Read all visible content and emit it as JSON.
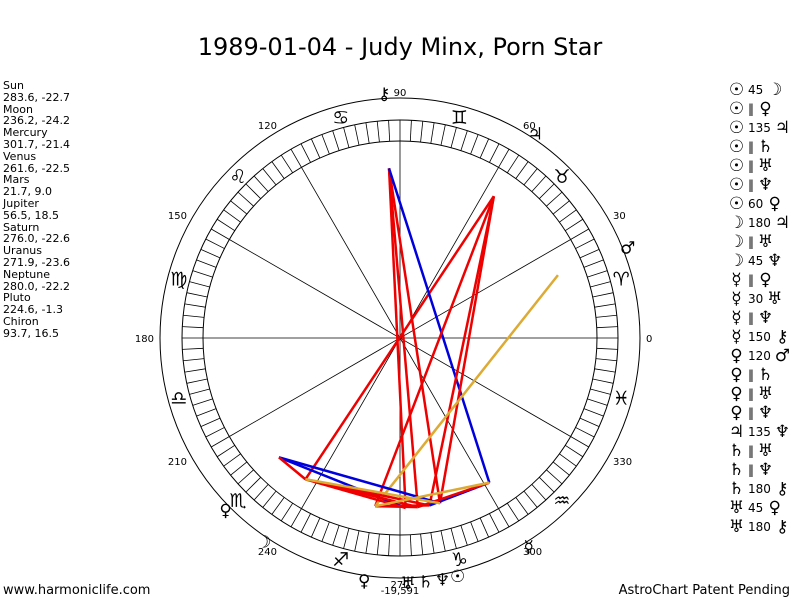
{
  "title": "1989-01-04 - Judy Minx, Porn Star",
  "planets": [
    {
      "name": "Sun",
      "coords": "283.6, -22.7",
      "lon": 283.6,
      "glyph": "☉"
    },
    {
      "name": "Moon",
      "coords": "236.2, -24.2",
      "lon": 236.2,
      "glyph": "☽"
    },
    {
      "name": "Mercury",
      "coords": "301.7, -21.4",
      "lon": 301.7,
      "glyph": "☿"
    },
    {
      "name": "Venus",
      "coords": "261.6, -22.5",
      "lon": 261.6,
      "glyph": "♀"
    },
    {
      "name": "Mars",
      "coords": "21.7, 9.0",
      "lon": 21.7,
      "glyph": "♂"
    },
    {
      "name": "Jupiter",
      "coords": "56.5, 18.5",
      "lon": 56.5,
      "glyph": "♃"
    },
    {
      "name": "Saturn",
      "coords": "276.0, -22.6",
      "lon": 276.0,
      "glyph": "♄"
    },
    {
      "name": "Uranus",
      "coords": "271.9, -23.6",
      "lon": 271.9,
      "glyph": "♅"
    },
    {
      "name": "Neptune",
      "coords": "280.0, -22.2",
      "lon": 280.0,
      "glyph": "♆"
    },
    {
      "name": "Pluto",
      "coords": "224.6, -1.3",
      "lon": 224.6,
      "glyph": "♀"
    },
    {
      "name": "Chiron",
      "coords": "93.7, 16.5",
      "lon": 93.7,
      "glyph": "⚷"
    }
  ],
  "aspects": [
    {
      "a": "☉",
      "n": "45",
      "b": "☽"
    },
    {
      "a": "☉",
      "n": "‖",
      "b": "♀"
    },
    {
      "a": "☉",
      "n": "135",
      "b": "♃"
    },
    {
      "a": "☉",
      "n": "‖",
      "b": "♄"
    },
    {
      "a": "☉",
      "n": "‖",
      "b": "♅"
    },
    {
      "a": "☉",
      "n": "‖",
      "b": "♆"
    },
    {
      "a": "☉",
      "n": "60",
      "b": "♀"
    },
    {
      "a": "☽",
      "n": "180",
      "b": "♃"
    },
    {
      "a": "☽",
      "n": "‖",
      "b": "♅"
    },
    {
      "a": "☽",
      "n": "45",
      "b": "♆"
    },
    {
      "a": "☿",
      "n": "‖",
      "b": "♀"
    },
    {
      "a": "☿",
      "n": "30",
      "b": "♅"
    },
    {
      "a": "☿",
      "n": "‖",
      "b": "♆"
    },
    {
      "a": "☿",
      "n": "150",
      "b": "⚷"
    },
    {
      "a": "♀",
      "n": "120",
      "b": "♂"
    },
    {
      "a": "♀",
      "n": "‖",
      "b": "♄"
    },
    {
      "a": "♀",
      "n": "‖",
      "b": "♅"
    },
    {
      "a": "♀",
      "n": "‖",
      "b": "♆"
    },
    {
      "a": "♃",
      "n": "135",
      "b": "♆"
    },
    {
      "a": "♄",
      "n": "‖",
      "b": "♅"
    },
    {
      "a": "♄",
      "n": "‖",
      "b": "♆"
    },
    {
      "a": "♄",
      "n": "180",
      "b": "⚷"
    },
    {
      "a": "♅",
      "n": "45",
      "b": "♀"
    },
    {
      "a": "♅",
      "n": "180",
      "b": "⚷"
    }
  ],
  "wheel": {
    "degree_labels": [
      "0",
      "30",
      "60",
      "90",
      "120",
      "150",
      "180",
      "210",
      "240",
      "270",
      "300",
      "330"
    ],
    "bottom_readout": "-19,591",
    "signs": [
      "♈",
      "♉",
      "♊",
      "♋",
      "♌",
      "♍",
      "♎",
      "♏",
      "♐",
      "♑",
      "♒",
      "♓"
    ],
    "aspect_lines": [
      {
        "from": "Moon",
        "to": "Jupiter",
        "color": "#ee0000"
      },
      {
        "from": "Chiron",
        "to": "Saturn",
        "color": "#ee0000"
      },
      {
        "from": "Chiron",
        "to": "Uranus",
        "color": "#ee0000"
      },
      {
        "from": "Chiron",
        "to": "Sun",
        "color": "#ee0000"
      },
      {
        "from": "Chiron",
        "to": "Mercury",
        "color": "#0000dd"
      },
      {
        "from": "Jupiter",
        "to": "Venus",
        "color": "#ee0000"
      },
      {
        "from": "Jupiter",
        "to": "Neptune",
        "color": "#ee0000"
      },
      {
        "from": "Jupiter",
        "to": "Sun",
        "color": "#ee0000"
      },
      {
        "from": "Mars",
        "to": "Venus",
        "color": "#ddaa33"
      },
      {
        "from": "Pluto",
        "to": "Sun",
        "color": "#0000dd"
      },
      {
        "from": "Pluto",
        "to": "Uranus",
        "color": "#0000dd"
      },
      {
        "from": "Pluto",
        "to": "Moon",
        "color": "#ee0000"
      },
      {
        "from": "Moon",
        "to": "Saturn",
        "color": "#ee0000"
      },
      {
        "from": "Moon",
        "to": "Uranus",
        "color": "#ee0000"
      },
      {
        "from": "Moon",
        "to": "Neptune",
        "color": "#ee0000"
      },
      {
        "from": "Venus",
        "to": "Saturn",
        "color": "#ee0000"
      },
      {
        "from": "Venus",
        "to": "Neptune",
        "color": "#ee0000"
      },
      {
        "from": "Mercury",
        "to": "Neptune",
        "color": "#0000dd"
      },
      {
        "from": "Mercury",
        "to": "Saturn",
        "color": "#ee0000"
      },
      {
        "from": "Moon",
        "to": "Sun",
        "color": "#ddaa33"
      },
      {
        "from": "Venus",
        "to": "Mercury",
        "color": "#ddaa33"
      }
    ]
  },
  "footer": {
    "left": "www.harmoniclife.com",
    "right": "AstroChart Patent Pending"
  }
}
